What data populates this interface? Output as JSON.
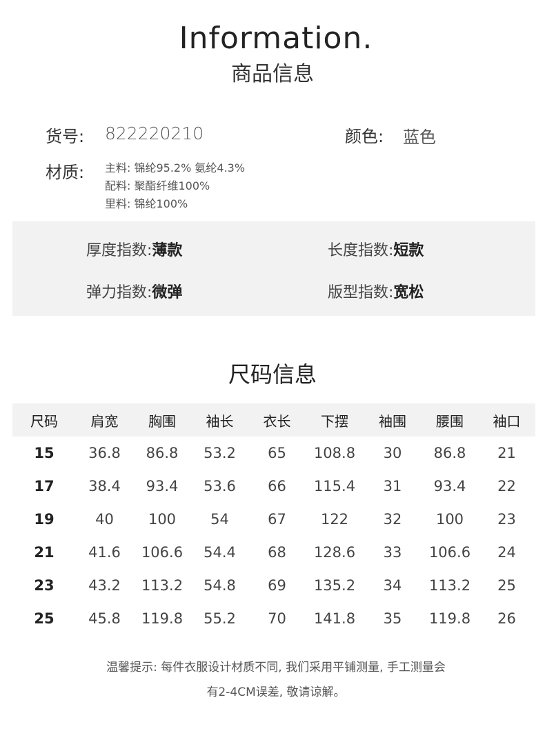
{
  "header": {
    "title_en": "Information.",
    "title_cn": "商品信息"
  },
  "info": {
    "sku_label": "货号:",
    "sku_value": "822220210",
    "color_label": "颜色:",
    "color_value": "蓝色",
    "material_label": "材质:",
    "materials": [
      "主料: 锦纶95.2% 氨纶4.3%",
      "配料: 聚酯纤维100%",
      "里料: 锦纶100%"
    ]
  },
  "indices": [
    {
      "label": "厚度指数:",
      "value": "薄款"
    },
    {
      "label": "长度指数:",
      "value": "短款"
    },
    {
      "label": "弹力指数:",
      "value": "微弹"
    },
    {
      "label": "版型指数:",
      "value": "宽松"
    }
  ],
  "size_table": {
    "title": "尺码信息",
    "headers": [
      "尺码",
      "肩宽",
      "胸围",
      "袖长",
      "衣长",
      "下摆",
      "袖围",
      "腰围",
      "袖口"
    ],
    "rows": [
      [
        "15",
        "36.8",
        "86.8",
        "53.2",
        "65",
        "108.8",
        "30",
        "86.8",
        "21"
      ],
      [
        "17",
        "38.4",
        "93.4",
        "53.6",
        "66",
        "115.4",
        "31",
        "93.4",
        "22"
      ],
      [
        "19",
        "40",
        "100",
        "54",
        "67",
        "122",
        "32",
        "100",
        "23"
      ],
      [
        "21",
        "41.6",
        "106.6",
        "54.4",
        "68",
        "128.6",
        "33",
        "106.6",
        "24"
      ],
      [
        "23",
        "43.2",
        "113.2",
        "54.8",
        "69",
        "135.2",
        "34",
        "113.2",
        "25"
      ],
      [
        "25",
        "45.8",
        "119.8",
        "55.2",
        "70",
        "141.8",
        "35",
        "119.8",
        "26"
      ]
    ]
  },
  "note": {
    "line1": "温馨提示: 每件衣服设计材质不同, 我们采用平铺测量, 手工测量会",
    "line2": "有2-4CM误差, 敬请谅解。"
  }
}
